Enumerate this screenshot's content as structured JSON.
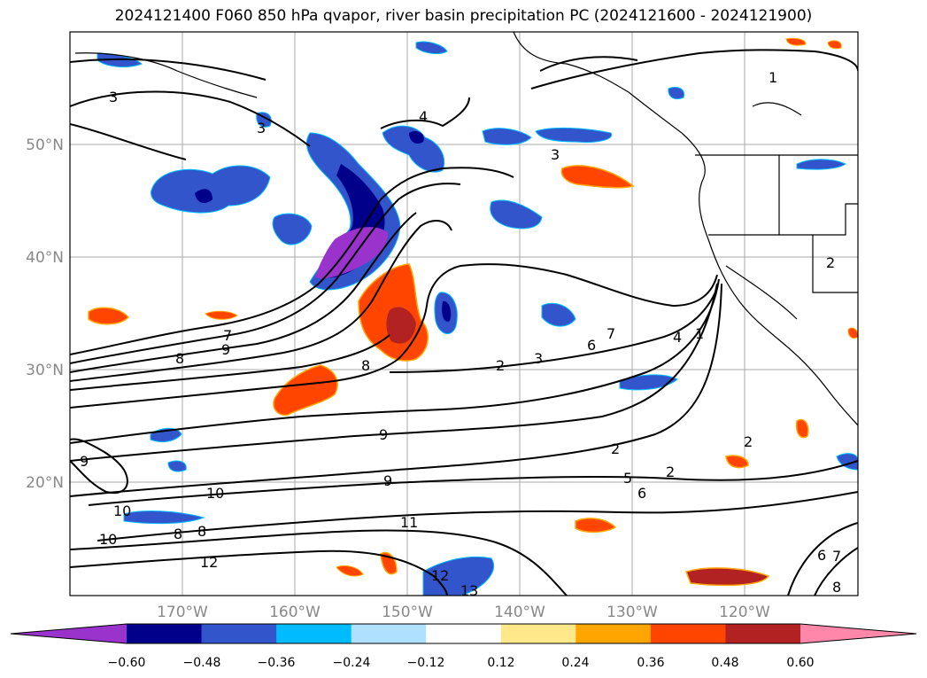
{
  "title": "2024121400 F060 850 hPa qvapor, river basin precipitation PC (2024121600 - 2024121900)",
  "lat_labels": [
    "50°N",
    "40°N",
    "30°N",
    "20°N"
  ],
  "lon_labels": [
    "170°W",
    "160°W",
    "150°W",
    "140°W",
    "130°W",
    "120°W"
  ],
  "colorbar": {
    "colors": [
      "#9933cc",
      "#00008b",
      "#3355cc",
      "#00bbff",
      "#b0e0ff",
      "#ffffff",
      "#ffe88a",
      "#ffa500",
      "#ff4500",
      "#b22222",
      "#ff88aa"
    ],
    "tick_labels": [
      "−0.60",
      "−0.48",
      "−0.36",
      "−0.24",
      "−0.12",
      "0.12",
      "0.24",
      "0.36",
      "0.48",
      "0.60"
    ]
  },
  "contour_labels": [
    "1",
    "3",
    "3",
    "4",
    "3",
    "8",
    "9",
    "7",
    "8",
    "2",
    "3",
    "6",
    "7",
    "4",
    "1",
    "2",
    "2",
    "2",
    "5",
    "6",
    "9",
    "9",
    "10",
    "10",
    "10",
    "8",
    "8",
    "9",
    "12",
    "11",
    "12",
    "13",
    "7",
    "6",
    "2",
    "8"
  ]
}
